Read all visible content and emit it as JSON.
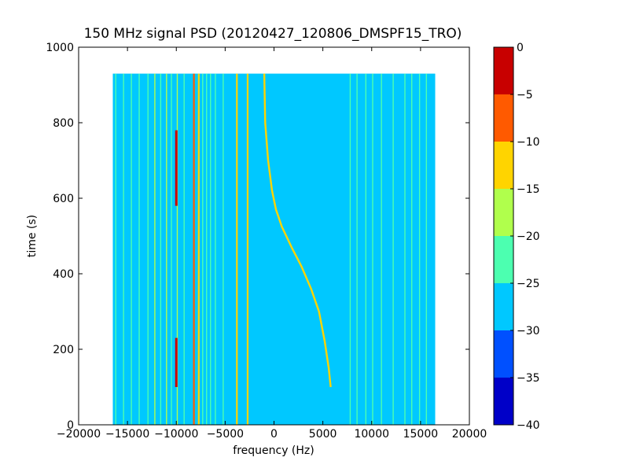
{
  "chart_data": {
    "type": "heatmap",
    "title": "150 MHz signal PSD (20120427_120806_DMSPF15_TRO)",
    "xlabel": "frequency (Hz)",
    "ylabel": "time (s)",
    "xlim": [
      -20000,
      20000
    ],
    "ylim": [
      0,
      1000
    ],
    "xticks": [
      -20000,
      -15000,
      -10000,
      -5000,
      0,
      5000,
      10000,
      15000,
      20000
    ],
    "xtick_labels": [
      "−20000",
      "−15000",
      "−10000",
      "−5000",
      "0",
      "5000",
      "10000",
      "15000",
      "20000"
    ],
    "yticks": [
      0,
      200,
      400,
      600,
      800,
      1000
    ],
    "ytick_labels": [
      "0",
      "200",
      "400",
      "600",
      "800",
      "1000"
    ],
    "data_extent": {
      "x": [
        -16500,
        16500
      ],
      "y": [
        0,
        930
      ]
    },
    "background_level_db": -27.5,
    "colorbar": {
      "range": [
        -40,
        0
      ],
      "levels": [
        -40,
        -35,
        -30,
        -25,
        -20,
        -15,
        -10,
        -5,
        0
      ],
      "tick_labels": [
        "−40",
        "−35",
        "−30",
        "−25",
        "−20",
        "−15",
        "−10",
        "−5",
        "0"
      ],
      "colors": [
        "#0000c8",
        "#0050ff",
        "#00c8ff",
        "#4cffb0",
        "#b0ff4c",
        "#ffd400",
        "#ff5a00",
        "#c80000"
      ]
    },
    "vertical_lines": [
      {
        "freq_hz": -16200,
        "db": -22
      },
      {
        "freq_hz": -15400,
        "db": -22
      },
      {
        "freq_hz": -14600,
        "db": -22
      },
      {
        "freq_hz": -13800,
        "db": -22
      },
      {
        "freq_hz": -12900,
        "db": -22
      },
      {
        "freq_hz": -12200,
        "db": -17
      },
      {
        "freq_hz": -11600,
        "db": -22
      },
      {
        "freq_hz": -11000,
        "db": -17
      },
      {
        "freq_hz": -10500,
        "db": -22
      },
      {
        "freq_hz": -9900,
        "db": -17
      },
      {
        "freq_hz": -9200,
        "db": -22
      },
      {
        "freq_hz": -8200,
        "db": -7
      },
      {
        "freq_hz": -7700,
        "db": -12
      },
      {
        "freq_hz": -7300,
        "db": -22
      },
      {
        "freq_hz": -6900,
        "db": -22
      },
      {
        "freq_hz": -6500,
        "db": -22
      },
      {
        "freq_hz": -6000,
        "db": -22
      },
      {
        "freq_hz": -5200,
        "db": -22
      },
      {
        "freq_hz": -3800,
        "db": -12
      },
      {
        "freq_hz": -2700,
        "db": -12
      },
      {
        "freq_hz": 7800,
        "db": -22
      },
      {
        "freq_hz": 8500,
        "db": -22
      },
      {
        "freq_hz": 9400,
        "db": -22
      },
      {
        "freq_hz": 10100,
        "db": -22
      },
      {
        "freq_hz": 11000,
        "db": -22
      },
      {
        "freq_hz": 12200,
        "db": -22
      },
      {
        "freq_hz": 13400,
        "db": -22
      },
      {
        "freq_hz": 14100,
        "db": -22
      },
      {
        "freq_hz": 14900,
        "db": -22
      },
      {
        "freq_hz": 15600,
        "db": -22
      }
    ],
    "short_segments": [
      {
        "freq_hz": -10000,
        "t_start": 580,
        "t_end": 780,
        "db": -2
      },
      {
        "freq_hz": -10000,
        "t_start": 100,
        "t_end": 230,
        "db": -2
      }
    ],
    "doppler_trace": {
      "db": -12,
      "points": [
        [
          -1000,
          930
        ],
        [
          -900,
          800
        ],
        [
          -600,
          700
        ],
        [
          -200,
          620
        ],
        [
          200,
          570
        ],
        [
          800,
          525
        ],
        [
          1800,
          470
        ],
        [
          2800,
          420
        ],
        [
          3800,
          360
        ],
        [
          4600,
          300
        ],
        [
          5200,
          220
        ],
        [
          5600,
          150
        ],
        [
          5800,
          100
        ]
      ]
    }
  }
}
